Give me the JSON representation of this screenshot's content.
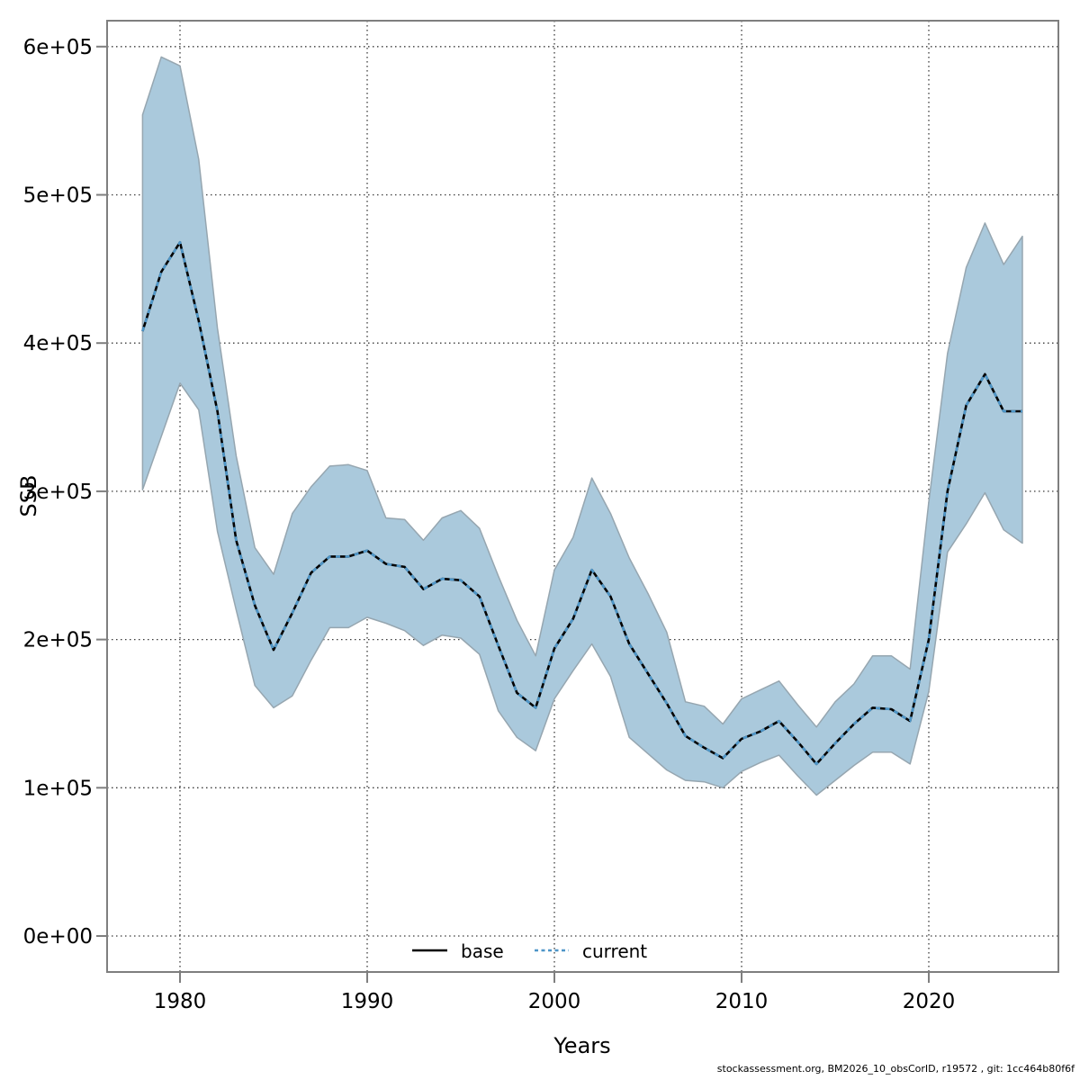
{
  "axes": {
    "x_label": "Years",
    "y_label": "SSB",
    "x_ticks": [
      {
        "value": 1980,
        "label": "1980"
      },
      {
        "value": 1990,
        "label": "1990"
      },
      {
        "value": 2000,
        "label": "2000"
      },
      {
        "value": 2010,
        "label": "2010"
      },
      {
        "value": 2020,
        "label": "2020"
      }
    ],
    "y_ticks": [
      {
        "value": 0,
        "label": "0e+00"
      },
      {
        "value": 100000,
        "label": "1e+05"
      },
      {
        "value": 200000,
        "label": "2e+05"
      },
      {
        "value": 300000,
        "label": "3e+05"
      },
      {
        "value": 400000,
        "label": "4e+05"
      },
      {
        "value": 500000,
        "label": "5e+05"
      },
      {
        "value": 600000,
        "label": "6e+05"
      }
    ]
  },
  "legend": [
    {
      "label": "base",
      "style": "solid",
      "color": "#000000"
    },
    {
      "label": "current",
      "style": "dashed",
      "color": "#4e96c8"
    }
  ],
  "footer": "stockassessment.org, BM2026_10_obsCorID, r19572 , git: 1cc464b80f6f",
  "colors": {
    "band_fill": "#aac9dc",
    "band_edge": "#96a6b0",
    "base_line": "#000000",
    "current_line": "#4e96c8",
    "grid": "#3a3a3a",
    "border": "#7f7f7f",
    "text": "#000000"
  },
  "chart_data": {
    "type": "line",
    "title": "",
    "xlabel": "Years",
    "ylabel": "SSB",
    "grid": true,
    "legend_position": "bottom-center-inside",
    "xlim": [
      1976,
      2027
    ],
    "ylim": [
      0,
      617000
    ],
    "x": [
      1978,
      1979,
      1980,
      1981,
      1982,
      1983,
      1984,
      1985,
      1986,
      1987,
      1988,
      1989,
      1990,
      1991,
      1992,
      1993,
      1994,
      1995,
      1996,
      1997,
      1998,
      1999,
      2000,
      2001,
      2002,
      2003,
      2004,
      2005,
      2006,
      2007,
      2008,
      2009,
      2010,
      2011,
      2012,
      2013,
      2014,
      2015,
      2016,
      2017,
      2018,
      2019,
      2020,
      2021,
      2022,
      2023,
      2024,
      2025
    ],
    "series": [
      {
        "name": "base",
        "style": "solid",
        "color": "#000000",
        "values": [
          408000,
          448000,
          468000,
          415000,
          354000,
          267000,
          223000,
          193000,
          218000,
          245000,
          256000,
          256000,
          260000,
          251000,
          249000,
          234000,
          241000,
          240000,
          229000,
          196000,
          164000,
          154000,
          194000,
          214000,
          247000,
          229000,
          197000,
          177000,
          157000,
          135000,
          127000,
          120000,
          133000,
          138000,
          145000,
          131000,
          116000,
          130000,
          143000,
          154000,
          153000,
          145000,
          200000,
          300000,
          358000,
          379000,
          354000,
          354000
        ]
      },
      {
        "name": "current",
        "style": "dashed",
        "color": "#4e96c8",
        "values": [
          408000,
          448000,
          468000,
          415000,
          354000,
          267000,
          223000,
          193000,
          218000,
          245000,
          256000,
          256000,
          260000,
          251000,
          249000,
          234000,
          241000,
          240000,
          229000,
          196000,
          164000,
          154000,
          194000,
          214000,
          247000,
          229000,
          197000,
          177000,
          157000,
          135000,
          127000,
          120000,
          133000,
          138000,
          145000,
          131000,
          116000,
          130000,
          143000,
          154000,
          153000,
          145000,
          200000,
          300000,
          358000,
          379000,
          354000,
          354000
        ]
      }
    ],
    "band": {
      "name": "current-confidence-interval",
      "color": "#aac9dc",
      "lower": [
        301000,
        337000,
        373000,
        355000,
        273000,
        220000,
        169000,
        154000,
        162000,
        186000,
        208000,
        208000,
        215000,
        211000,
        206000,
        196000,
        203000,
        201000,
        190000,
        152000,
        134000,
        125000,
        160000,
        179000,
        197000,
        175000,
        134000,
        123000,
        112000,
        105000,
        104000,
        100000,
        111000,
        117000,
        122000,
        108000,
        95000,
        105000,
        115000,
        124000,
        124000,
        116000,
        165000,
        259000,
        278000,
        299000,
        274000,
        265000
      ],
      "upper": [
        554000,
        593000,
        587000,
        524000,
        410000,
        324000,
        262000,
        244000,
        285000,
        303000,
        317000,
        318000,
        314000,
        282000,
        281000,
        267000,
        282000,
        287000,
        275000,
        243000,
        213000,
        189000,
        247000,
        269000,
        309000,
        285000,
        255000,
        231000,
        205000,
        158000,
        155000,
        143000,
        160000,
        166000,
        172000,
        156000,
        141000,
        158000,
        170000,
        189000,
        189000,
        180000,
        293000,
        393000,
        451000,
        481000,
        453000,
        472000
      ]
    }
  }
}
